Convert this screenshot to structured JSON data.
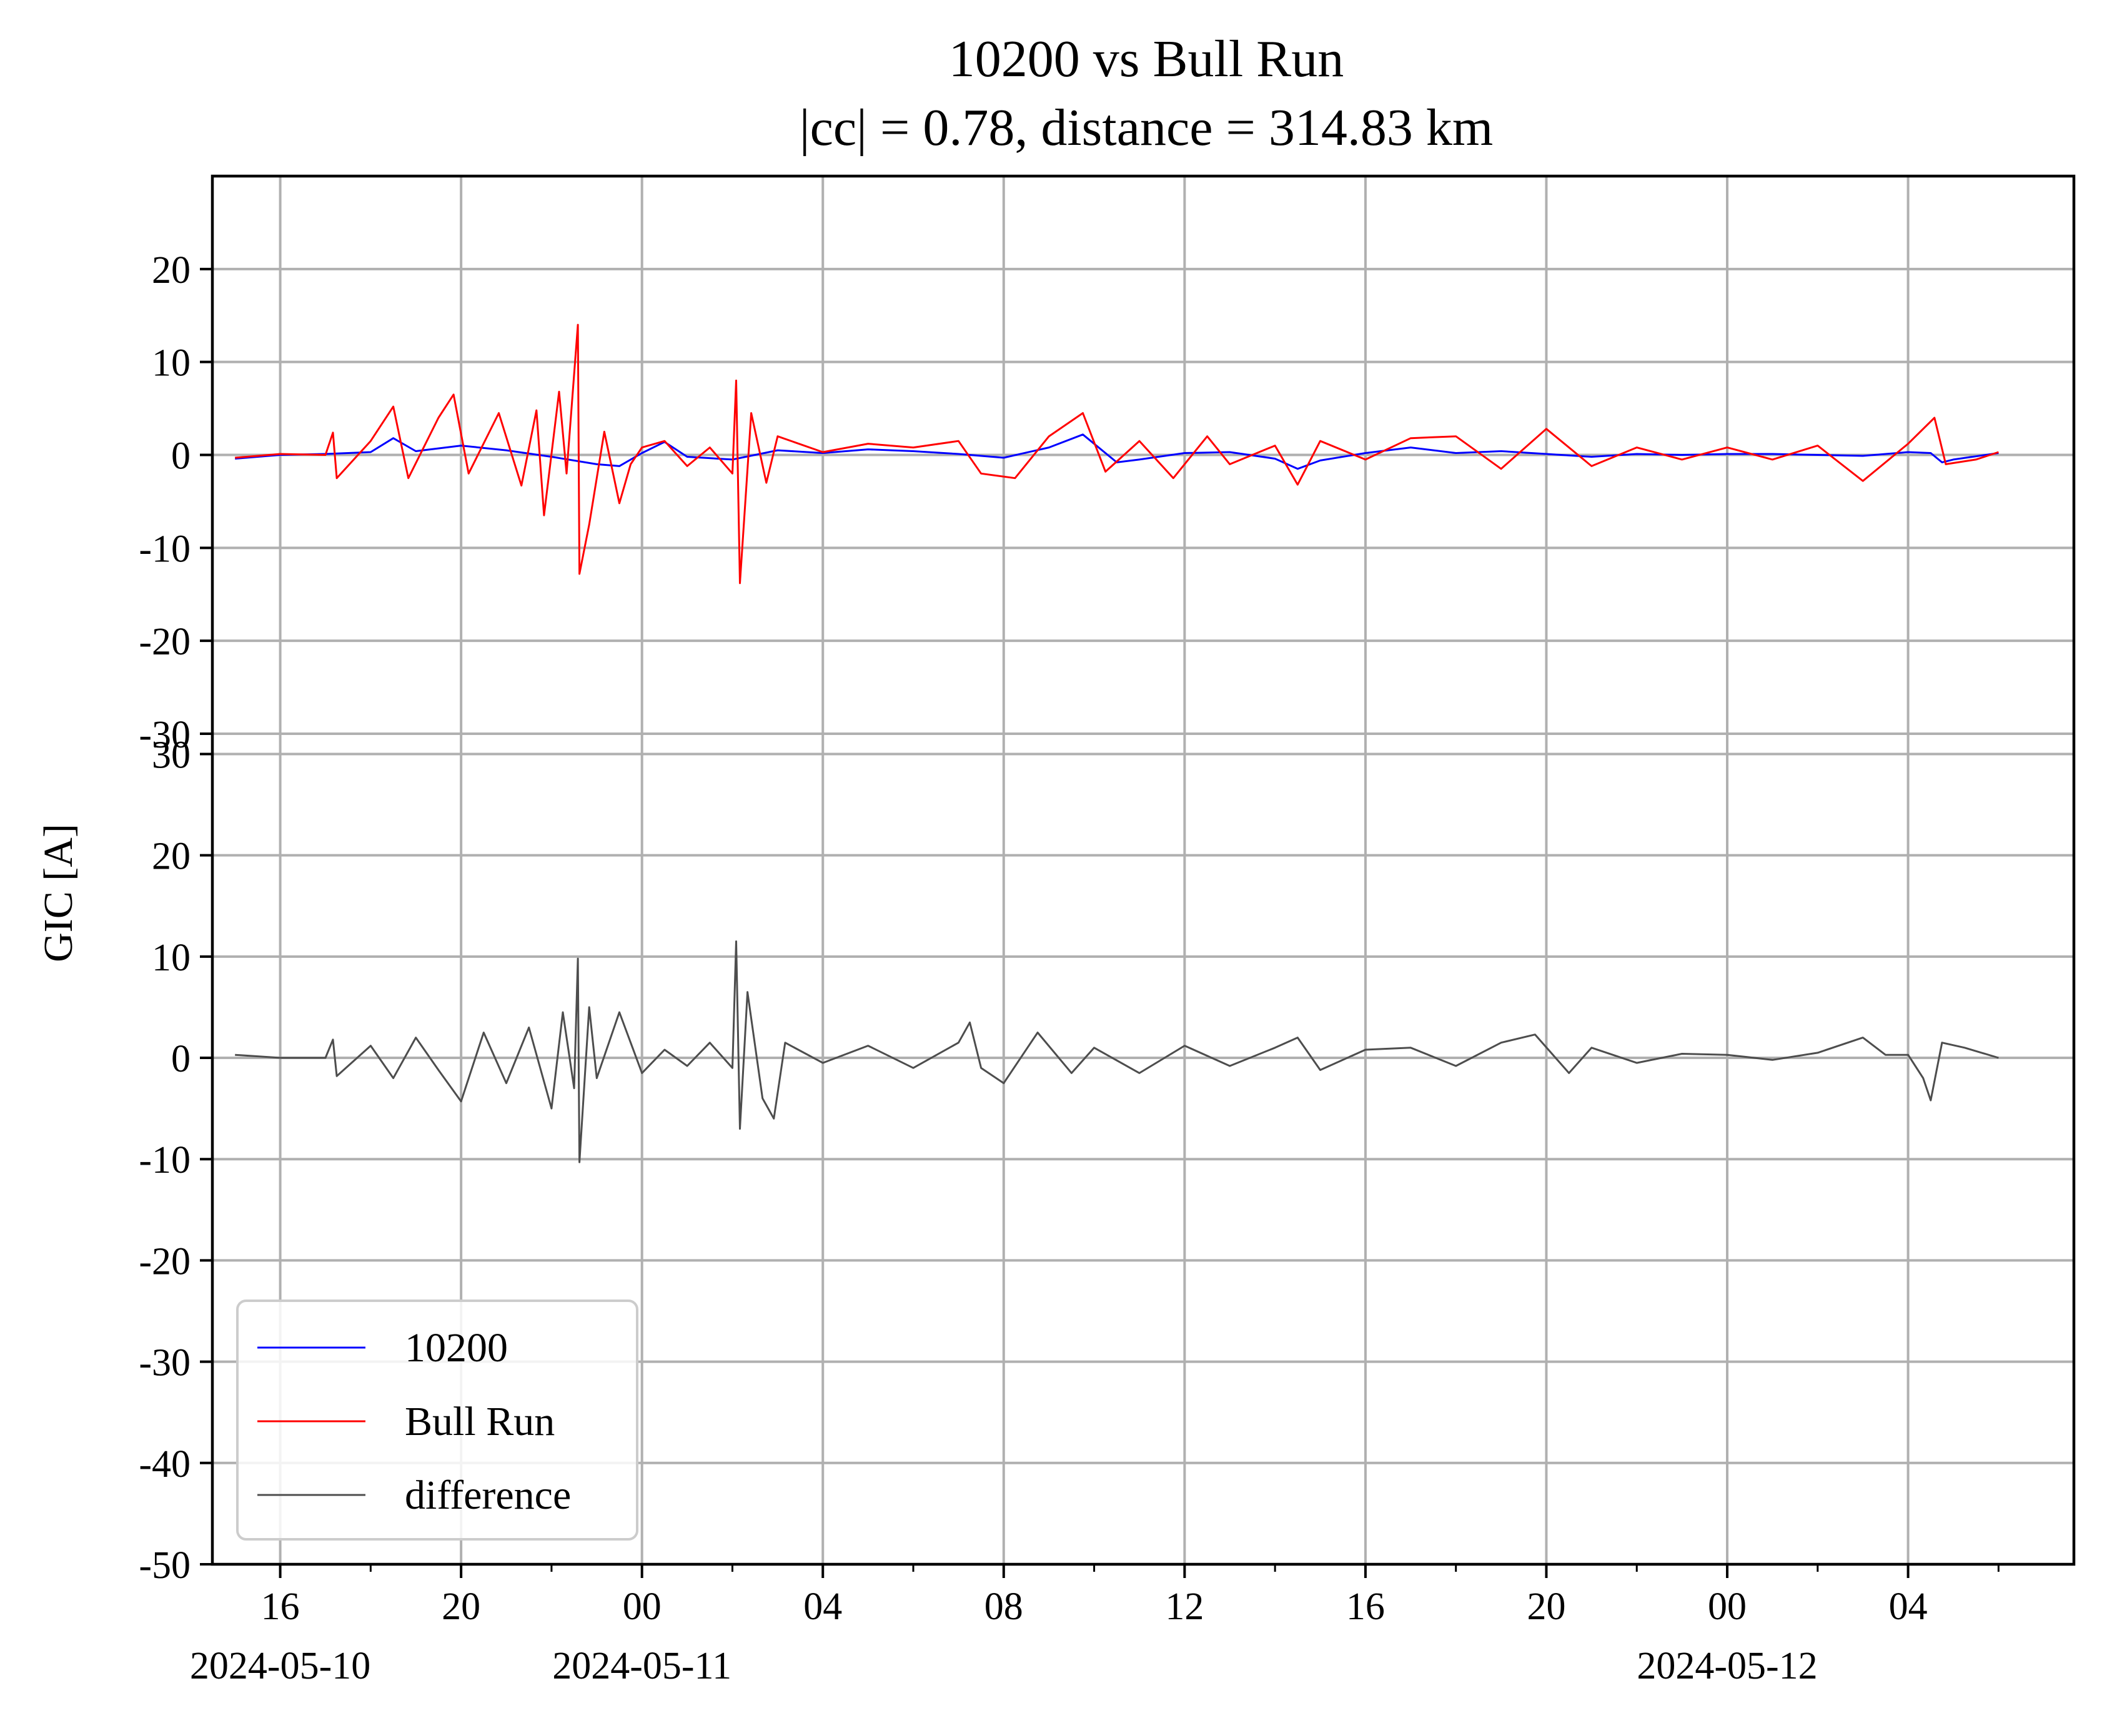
{
  "chart_data": {
    "type": "line",
    "title": "10200 vs Bull Run",
    "subtitle": "|cc| = 0.78, distance = 314.83 km",
    "ylabel": "GIC [A]",
    "xlabel": "",
    "grid": true,
    "legend_position": "lower-left",
    "x_axis": {
      "type": "time",
      "range": [
        "2024-05-10 14:30",
        "2024-05-12 07:40"
      ],
      "tick_labels": [
        "16",
        "20",
        "00",
        "04",
        "08",
        "12",
        "16",
        "20",
        "00",
        "04"
      ],
      "tick_times": [
        "2024-05-10 16:00",
        "2024-05-10 20:00",
        "2024-05-11 00:00",
        "2024-05-11 04:00",
        "2024-05-11 08:00",
        "2024-05-11 12:00",
        "2024-05-11 16:00",
        "2024-05-11 20:00",
        "2024-05-12 00:00",
        "2024-05-12 04:00"
      ],
      "date_labels": [
        {
          "text": "2024-05-10",
          "at": "2024-05-10 16:00"
        },
        {
          "text": "2024-05-11",
          "at": "2024-05-11 00:00"
        },
        {
          "text": "2024-05-12",
          "at": "2024-05-12 00:00"
        }
      ]
    },
    "panels": [
      {
        "ylim": [
          -30,
          30
        ],
        "yticks": [
          "20",
          "10",
          "0",
          "-10",
          "-20",
          "-30"
        ],
        "series": [
          {
            "name": "10200",
            "color": "#0000ff",
            "points": [
              [
                "2024-05-10 15:00",
                -0.4
              ],
              [
                "2024-05-10 16:00",
                0.0
              ],
              [
                "2024-05-10 17:00",
                0.1
              ],
              [
                "2024-05-10 18:00",
                0.3
              ],
              [
                "2024-05-10 18:30",
                1.8
              ],
              [
                "2024-05-10 19:00",
                0.4
              ],
              [
                "2024-05-10 20:00",
                1.0
              ],
              [
                "2024-05-10 21:00",
                0.5
              ],
              [
                "2024-05-10 22:00",
                -0.2
              ],
              [
                "2024-05-10 23:00",
                -1.0
              ],
              [
                "2024-05-10 23:30",
                -1.2
              ],
              [
                "2024-05-11 00:00",
                0.2
              ],
              [
                "2024-05-11 00:30",
                1.4
              ],
              [
                "2024-05-11 01:00",
                -0.2
              ],
              [
                "2024-05-11 02:00",
                -0.5
              ],
              [
                "2024-05-11 03:00",
                0.5
              ],
              [
                "2024-05-11 04:00",
                0.2
              ],
              [
                "2024-05-11 05:00",
                0.6
              ],
              [
                "2024-05-11 06:00",
                0.4
              ],
              [
                "2024-05-11 07:00",
                0.1
              ],
              [
                "2024-05-11 08:00",
                -0.3
              ],
              [
                "2024-05-11 09:00",
                0.8
              ],
              [
                "2024-05-11 09:45",
                2.2
              ],
              [
                "2024-05-11 10:30",
                -0.8
              ],
              [
                "2024-05-11 11:00",
                -0.5
              ],
              [
                "2024-05-11 12:00",
                0.2
              ],
              [
                "2024-05-11 13:00",
                0.3
              ],
              [
                "2024-05-11 14:00",
                -0.4
              ],
              [
                "2024-05-11 14:30",
                -1.5
              ],
              [
                "2024-05-11 15:00",
                -0.6
              ],
              [
                "2024-05-11 16:00",
                0.2
              ],
              [
                "2024-05-11 17:00",
                0.8
              ],
              [
                "2024-05-11 18:00",
                0.2
              ],
              [
                "2024-05-11 19:00",
                0.4
              ],
              [
                "2024-05-11 20:00",
                0.1
              ],
              [
                "2024-05-11 21:00",
                -0.2
              ],
              [
                "2024-05-11 22:00",
                0.1
              ],
              [
                "2024-05-11 23:00",
                0.0
              ],
              [
                "2024-05-12 00:00",
                0.1
              ],
              [
                "2024-05-12 01:00",
                0.1
              ],
              [
                "2024-05-12 02:00",
                0.0
              ],
              [
                "2024-05-12 03:00",
                -0.1
              ],
              [
                "2024-05-12 04:00",
                0.3
              ],
              [
                "2024-05-12 04:30",
                0.2
              ],
              [
                "2024-05-12 04:45",
                -0.8
              ],
              [
                "2024-05-12 05:00",
                -0.5
              ],
              [
                "2024-05-12 06:00",
                0.2
              ]
            ]
          },
          {
            "name": "Bull Run",
            "color": "#ff0000",
            "points": [
              [
                "2024-05-10 15:00",
                -0.3
              ],
              [
                "2024-05-10 16:00",
                0.1
              ],
              [
                "2024-05-10 17:00",
                0.0
              ],
              [
                "2024-05-10 17:10",
                2.4
              ],
              [
                "2024-05-10 17:15",
                -2.5
              ],
              [
                "2024-05-10 18:00",
                1.5
              ],
              [
                "2024-05-10 18:30",
                5.2
              ],
              [
                "2024-05-10 18:50",
                -2.5
              ],
              [
                "2024-05-10 19:30",
                4.0
              ],
              [
                "2024-05-10 19:50",
                6.5
              ],
              [
                "2024-05-10 20:10",
                -2.0
              ],
              [
                "2024-05-10 20:50",
                4.5
              ],
              [
                "2024-05-10 21:20",
                -3.3
              ],
              [
                "2024-05-10 21:40",
                4.8
              ],
              [
                "2024-05-10 21:50",
                -6.5
              ],
              [
                "2024-05-10 22:10",
                6.8
              ],
              [
                "2024-05-10 22:20",
                -2.0
              ],
              [
                "2024-05-10 22:35",
                14.0
              ],
              [
                "2024-05-10 22:37",
                -12.8
              ],
              [
                "2024-05-10 22:50",
                -7.5
              ],
              [
                "2024-05-10 23:10",
                2.5
              ],
              [
                "2024-05-10 23:30",
                -5.2
              ],
              [
                "2024-05-10 23:45",
                -1.0
              ],
              [
                "2024-05-11 00:00",
                0.8
              ],
              [
                "2024-05-11 00:30",
                1.5
              ],
              [
                "2024-05-11 01:00",
                -1.2
              ],
              [
                "2024-05-11 01:30",
                0.8
              ],
              [
                "2024-05-11 02:00",
                -2.0
              ],
              [
                "2024-05-11 02:05",
                8.0
              ],
              [
                "2024-05-11 02:10",
                -13.8
              ],
              [
                "2024-05-11 02:25",
                4.5
              ],
              [
                "2024-05-11 02:45",
                -3.0
              ],
              [
                "2024-05-11 03:00",
                2.0
              ],
              [
                "2024-05-11 04:00",
                0.3
              ],
              [
                "2024-05-11 05:00",
                1.2
              ],
              [
                "2024-05-11 06:00",
                0.8
              ],
              [
                "2024-05-11 07:00",
                1.5
              ],
              [
                "2024-05-11 07:30",
                -2.0
              ],
              [
                "2024-05-11 08:15",
                -2.5
              ],
              [
                "2024-05-11 09:00",
                2.0
              ],
              [
                "2024-05-11 09:45",
                4.5
              ],
              [
                "2024-05-11 10:15",
                -1.8
              ],
              [
                "2024-05-11 11:00",
                1.5
              ],
              [
                "2024-05-11 11:45",
                -2.5
              ],
              [
                "2024-05-11 12:30",
                2.0
              ],
              [
                "2024-05-11 13:00",
                -1.0
              ],
              [
                "2024-05-11 14:00",
                1.0
              ],
              [
                "2024-05-11 14:30",
                -3.2
              ],
              [
                "2024-05-11 15:00",
                1.5
              ],
              [
                "2024-05-11 16:00",
                -0.5
              ],
              [
                "2024-05-11 17:00",
                1.8
              ],
              [
                "2024-05-11 18:00",
                2.0
              ],
              [
                "2024-05-11 19:00",
                -1.5
              ],
              [
                "2024-05-11 20:00",
                2.8
              ],
              [
                "2024-05-11 21:00",
                -1.2
              ],
              [
                "2024-05-11 22:00",
                0.8
              ],
              [
                "2024-05-11 23:00",
                -0.5
              ],
              [
                "2024-05-12 00:00",
                0.8
              ],
              [
                "2024-05-12 01:00",
                -0.5
              ],
              [
                "2024-05-12 02:00",
                1.0
              ],
              [
                "2024-05-12 03:00",
                -2.8
              ],
              [
                "2024-05-12 04:00",
                1.2
              ],
              [
                "2024-05-12 04:35",
                4.0
              ],
              [
                "2024-05-12 04:50",
                -1.0
              ],
              [
                "2024-05-12 05:30",
                -0.5
              ],
              [
                "2024-05-12 06:00",
                0.3
              ]
            ]
          }
        ]
      },
      {
        "ylim": [
          -50,
          32
        ],
        "yticks": [
          "30",
          "20",
          "10",
          "0",
          "-10",
          "-20",
          "-30",
          "-40",
          "-50"
        ],
        "series": [
          {
            "name": "difference",
            "color": "#4d4d4d",
            "points": [
              [
                "2024-05-10 15:00",
                0.3
              ],
              [
                "2024-05-10 16:00",
                0.0
              ],
              [
                "2024-05-10 17:00",
                0.0
              ],
              [
                "2024-05-10 17:10",
                1.8
              ],
              [
                "2024-05-10 17:15",
                -1.8
              ],
              [
                "2024-05-10 18:00",
                1.2
              ],
              [
                "2024-05-10 18:30",
                -2.0
              ],
              [
                "2024-05-10 19:00",
                2.0
              ],
              [
                "2024-05-10 19:30",
                -1.2
              ],
              [
                "2024-05-10 20:00",
                -4.3
              ],
              [
                "2024-05-10 20:30",
                2.5
              ],
              [
                "2024-05-10 21:00",
                -2.5
              ],
              [
                "2024-05-10 21:30",
                3.0
              ],
              [
                "2024-05-10 22:00",
                -5.0
              ],
              [
                "2024-05-10 22:15",
                4.5
              ],
              [
                "2024-05-10 22:30",
                -3.0
              ],
              [
                "2024-05-10 22:35",
                9.8
              ],
              [
                "2024-05-10 22:37",
                -10.3
              ],
              [
                "2024-05-10 22:50",
                5.0
              ],
              [
                "2024-05-10 23:00",
                -2.0
              ],
              [
                "2024-05-10 23:30",
                4.5
              ],
              [
                "2024-05-11 00:00",
                -1.5
              ],
              [
                "2024-05-11 00:30",
                0.8
              ],
              [
                "2024-05-11 01:00",
                -0.8
              ],
              [
                "2024-05-11 01:30",
                1.5
              ],
              [
                "2024-05-11 02:00",
                -1.0
              ],
              [
                "2024-05-11 02:05",
                11.5
              ],
              [
                "2024-05-11 02:10",
                -7.0
              ],
              [
                "2024-05-11 02:20",
                6.5
              ],
              [
                "2024-05-11 02:40",
                -4.0
              ],
              [
                "2024-05-11 02:55",
                -6.0
              ],
              [
                "2024-05-11 03:10",
                1.5
              ],
              [
                "2024-05-11 04:00",
                -0.5
              ],
              [
                "2024-05-11 05:00",
                1.2
              ],
              [
                "2024-05-11 06:00",
                -1.0
              ],
              [
                "2024-05-11 07:00",
                1.5
              ],
              [
                "2024-05-11 07:15",
                3.5
              ],
              [
                "2024-05-11 07:30",
                -1.0
              ],
              [
                "2024-05-11 08:00",
                -2.5
              ],
              [
                "2024-05-11 08:45",
                2.5
              ],
              [
                "2024-05-11 09:30",
                -1.5
              ],
              [
                "2024-05-11 10:00",
                1.0
              ],
              [
                "2024-05-11 11:00",
                -1.5
              ],
              [
                "2024-05-11 12:00",
                1.2
              ],
              [
                "2024-05-11 13:00",
                -0.8
              ],
              [
                "2024-05-11 14:00",
                1.0
              ],
              [
                "2024-05-11 14:30",
                2.0
              ],
              [
                "2024-05-11 15:00",
                -1.2
              ],
              [
                "2024-05-11 16:00",
                0.8
              ],
              [
                "2024-05-11 17:00",
                1.0
              ],
              [
                "2024-05-11 18:00",
                -0.8
              ],
              [
                "2024-05-11 19:00",
                1.5
              ],
              [
                "2024-05-11 19:45",
                2.3
              ],
              [
                "2024-05-11 20:30",
                -1.5
              ],
              [
                "2024-05-11 21:00",
                1.0
              ],
              [
                "2024-05-11 22:00",
                -0.5
              ],
              [
                "2024-05-11 23:00",
                0.4
              ],
              [
                "2024-05-12 00:00",
                0.3
              ],
              [
                "2024-05-12 01:00",
                -0.2
              ],
              [
                "2024-05-12 02:00",
                0.5
              ],
              [
                "2024-05-12 03:00",
                2.0
              ],
              [
                "2024-05-12 03:30",
                0.3
              ],
              [
                "2024-05-12 04:00",
                0.3
              ],
              [
                "2024-05-12 04:20",
                -2.0
              ],
              [
                "2024-05-12 04:30",
                -4.2
              ],
              [
                "2024-05-12 04:45",
                1.5
              ],
              [
                "2024-05-12 05:15",
                1.0
              ],
              [
                "2024-05-12 06:00",
                0.0
              ]
            ]
          }
        ]
      }
    ],
    "legend": [
      {
        "label": "10200",
        "color": "#0000ff"
      },
      {
        "label": "Bull Run",
        "color": "#ff0000"
      },
      {
        "label": "difference",
        "color": "#4d4d4d"
      }
    ]
  }
}
